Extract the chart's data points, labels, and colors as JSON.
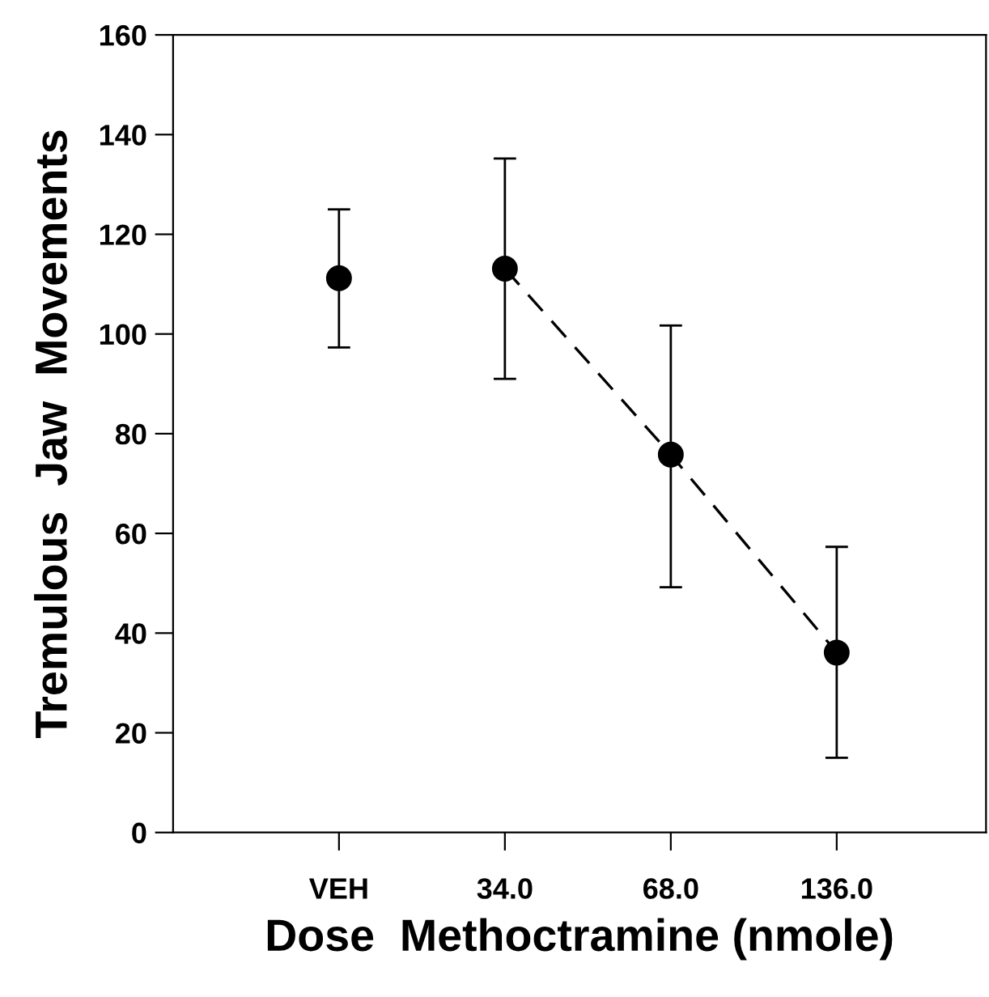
{
  "chart_data": {
    "type": "scatter",
    "xlabel": "Dose  Methoctramine (nmole)",
    "ylabel": "Tremulous  Jaw  Movements",
    "categories": [
      "VEH",
      "34.0",
      "68.0",
      "136.0"
    ],
    "series": [
      {
        "color": "#000000",
        "marker": "circle",
        "values": [
          111.2,
          113.1,
          75.8,
          36.1
        ],
        "errors": [
          [
            97.3,
            125
          ],
          [
            91,
            135.2
          ],
          [
            49.2,
            101.7
          ],
          [
            15,
            57.3
          ]
        ]
      },
      {
        "type": "line",
        "color": "#000000",
        "line_style": "dashed",
        "values": [
          null,
          113.1,
          75.8,
          36.1
        ]
      }
    ],
    "ylim": [
      0,
      160
    ],
    "yticks": [
      0,
      20,
      40,
      60,
      80,
      100,
      120,
      140,
      160
    ],
    "grid": false,
    "legend": false
  }
}
